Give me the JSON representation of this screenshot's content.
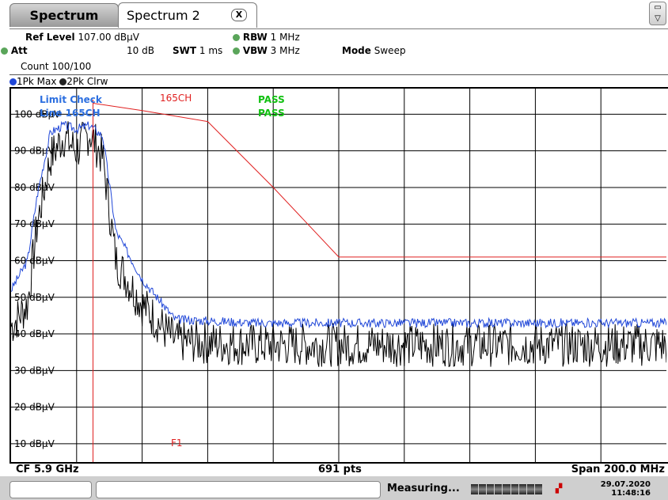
{
  "tabs": {
    "inactive_label": "Spectrum",
    "active_label": "Spectrum 2",
    "close_label": "X"
  },
  "settings": {
    "ref_level_label": "Ref Level",
    "ref_level_value": "107.00 dBµV",
    "att_label": "Att",
    "att_value": "10 dB",
    "count_text": "Count 100/100",
    "swt_label": "SWT",
    "swt_value": "1 ms",
    "rbw_label": "RBW",
    "rbw_value": "1 MHz",
    "vbw_label": "VBW",
    "vbw_value": "3 MHz",
    "mode_label": "Mode",
    "mode_value": "Sweep"
  },
  "traces": {
    "trace1_label": "1Pk Max",
    "trace2_label": "2Pk Clrw"
  },
  "plot": {
    "limit_check_label": "Limit Check",
    "limit_line_label": "Line 165CH",
    "pass_label_1": "PASS",
    "pass_label_2": "PASS",
    "limit_name_label": "165CH",
    "marker_label": "F1",
    "y_tick_labels": [
      "100 dBµV",
      "90 dBµV",
      "80 dBµV",
      "70 dBµV",
      "60 dBµV",
      "50 dBµV",
      "40 dBµV",
      "30 dBµV",
      "20 dBµV",
      "10 dBµV"
    ]
  },
  "footer": {
    "cf_text": "CF 5.9 GHz",
    "pts_text": "691 pts",
    "span_text": "Span 200.0 MHz"
  },
  "status": {
    "measuring_text": "Measuring...",
    "date_text": "29.07.2020",
    "time_text": "11:48:16"
  },
  "colors": {
    "trace1": "#2047d8",
    "trace2": "#000000",
    "limit": "#e02020",
    "pass": "#10c010",
    "limit_text": "#2c6fe0"
  },
  "chart_data": {
    "type": "line",
    "xlabel": "",
    "ylabel": "",
    "x_center_ghz": 5.9,
    "span_mhz": 200.0,
    "points": 691,
    "ylim": [
      5,
      107
    ],
    "y_ticks": [
      100,
      90,
      80,
      70,
      60,
      50,
      40,
      30,
      20,
      10
    ],
    "limit_line": {
      "name": "165CH",
      "x_mhz_offset": [
        -75,
        -60,
        -40,
        -20,
        0,
        100
      ],
      "y": [
        103,
        101,
        98,
        80,
        61,
        61
      ]
    },
    "marker_F1_mhz_offset": -75,
    "series": [
      {
        "name": "1Pk Max",
        "x_mhz_offset": [
          -100,
          -95,
          -92,
          -88,
          -84,
          -80,
          -76,
          -72,
          -68,
          -60,
          -50,
          -25,
          0,
          25,
          50,
          75,
          100
        ],
        "y": [
          52,
          60,
          78,
          95,
          97,
          96,
          97,
          94,
          68,
          55,
          44,
          43,
          43,
          43,
          43,
          43,
          43
        ]
      },
      {
        "name": "2Pk Clrw",
        "x_mhz_offset": [
          -100,
          -95,
          -92,
          -88,
          -84,
          -80,
          -76,
          -72,
          -68,
          -60,
          -50,
          -25,
          0,
          25,
          50,
          75,
          100
        ],
        "y": [
          42,
          48,
          70,
          88,
          94,
          90,
          95,
          88,
          60,
          48,
          38,
          37,
          37,
          37,
          37,
          37,
          37
        ]
      }
    ]
  }
}
